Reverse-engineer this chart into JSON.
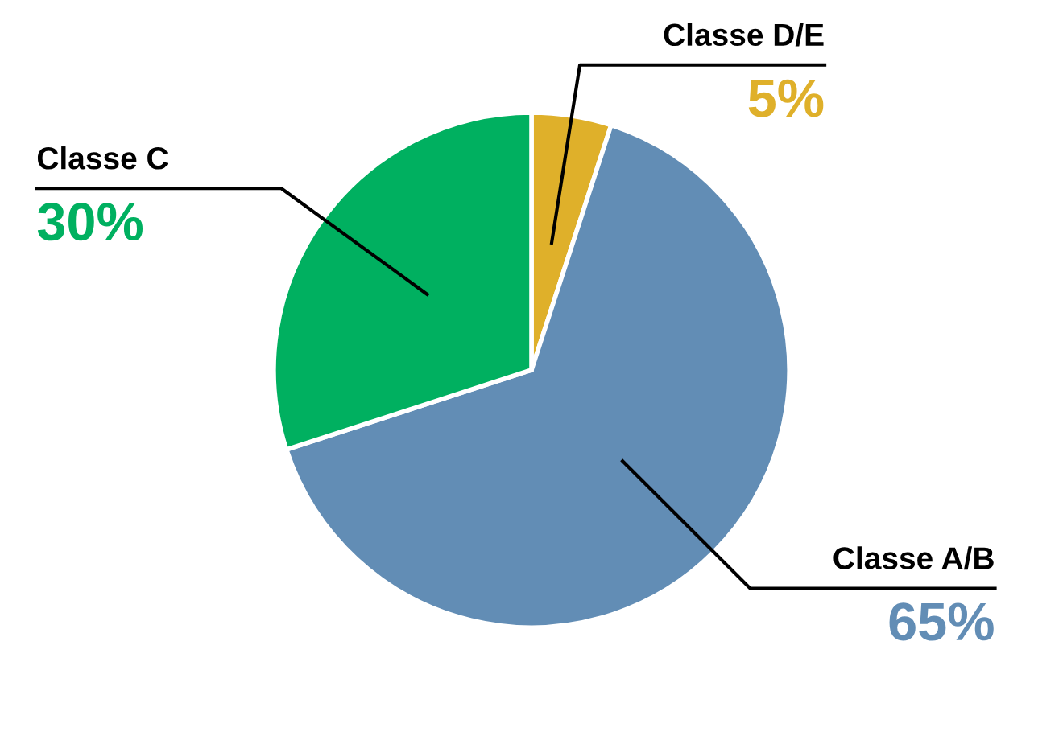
{
  "chart_data": {
    "type": "pie",
    "categories": [
      "Classe D/E",
      "Classe A/B",
      "Classe C"
    ],
    "values": [
      5,
      65,
      30
    ],
    "colors": [
      "#dfb02a",
      "#628db5",
      "#00b060"
    ],
    "value_labels": [
      "5%",
      "65%",
      "30%"
    ]
  }
}
